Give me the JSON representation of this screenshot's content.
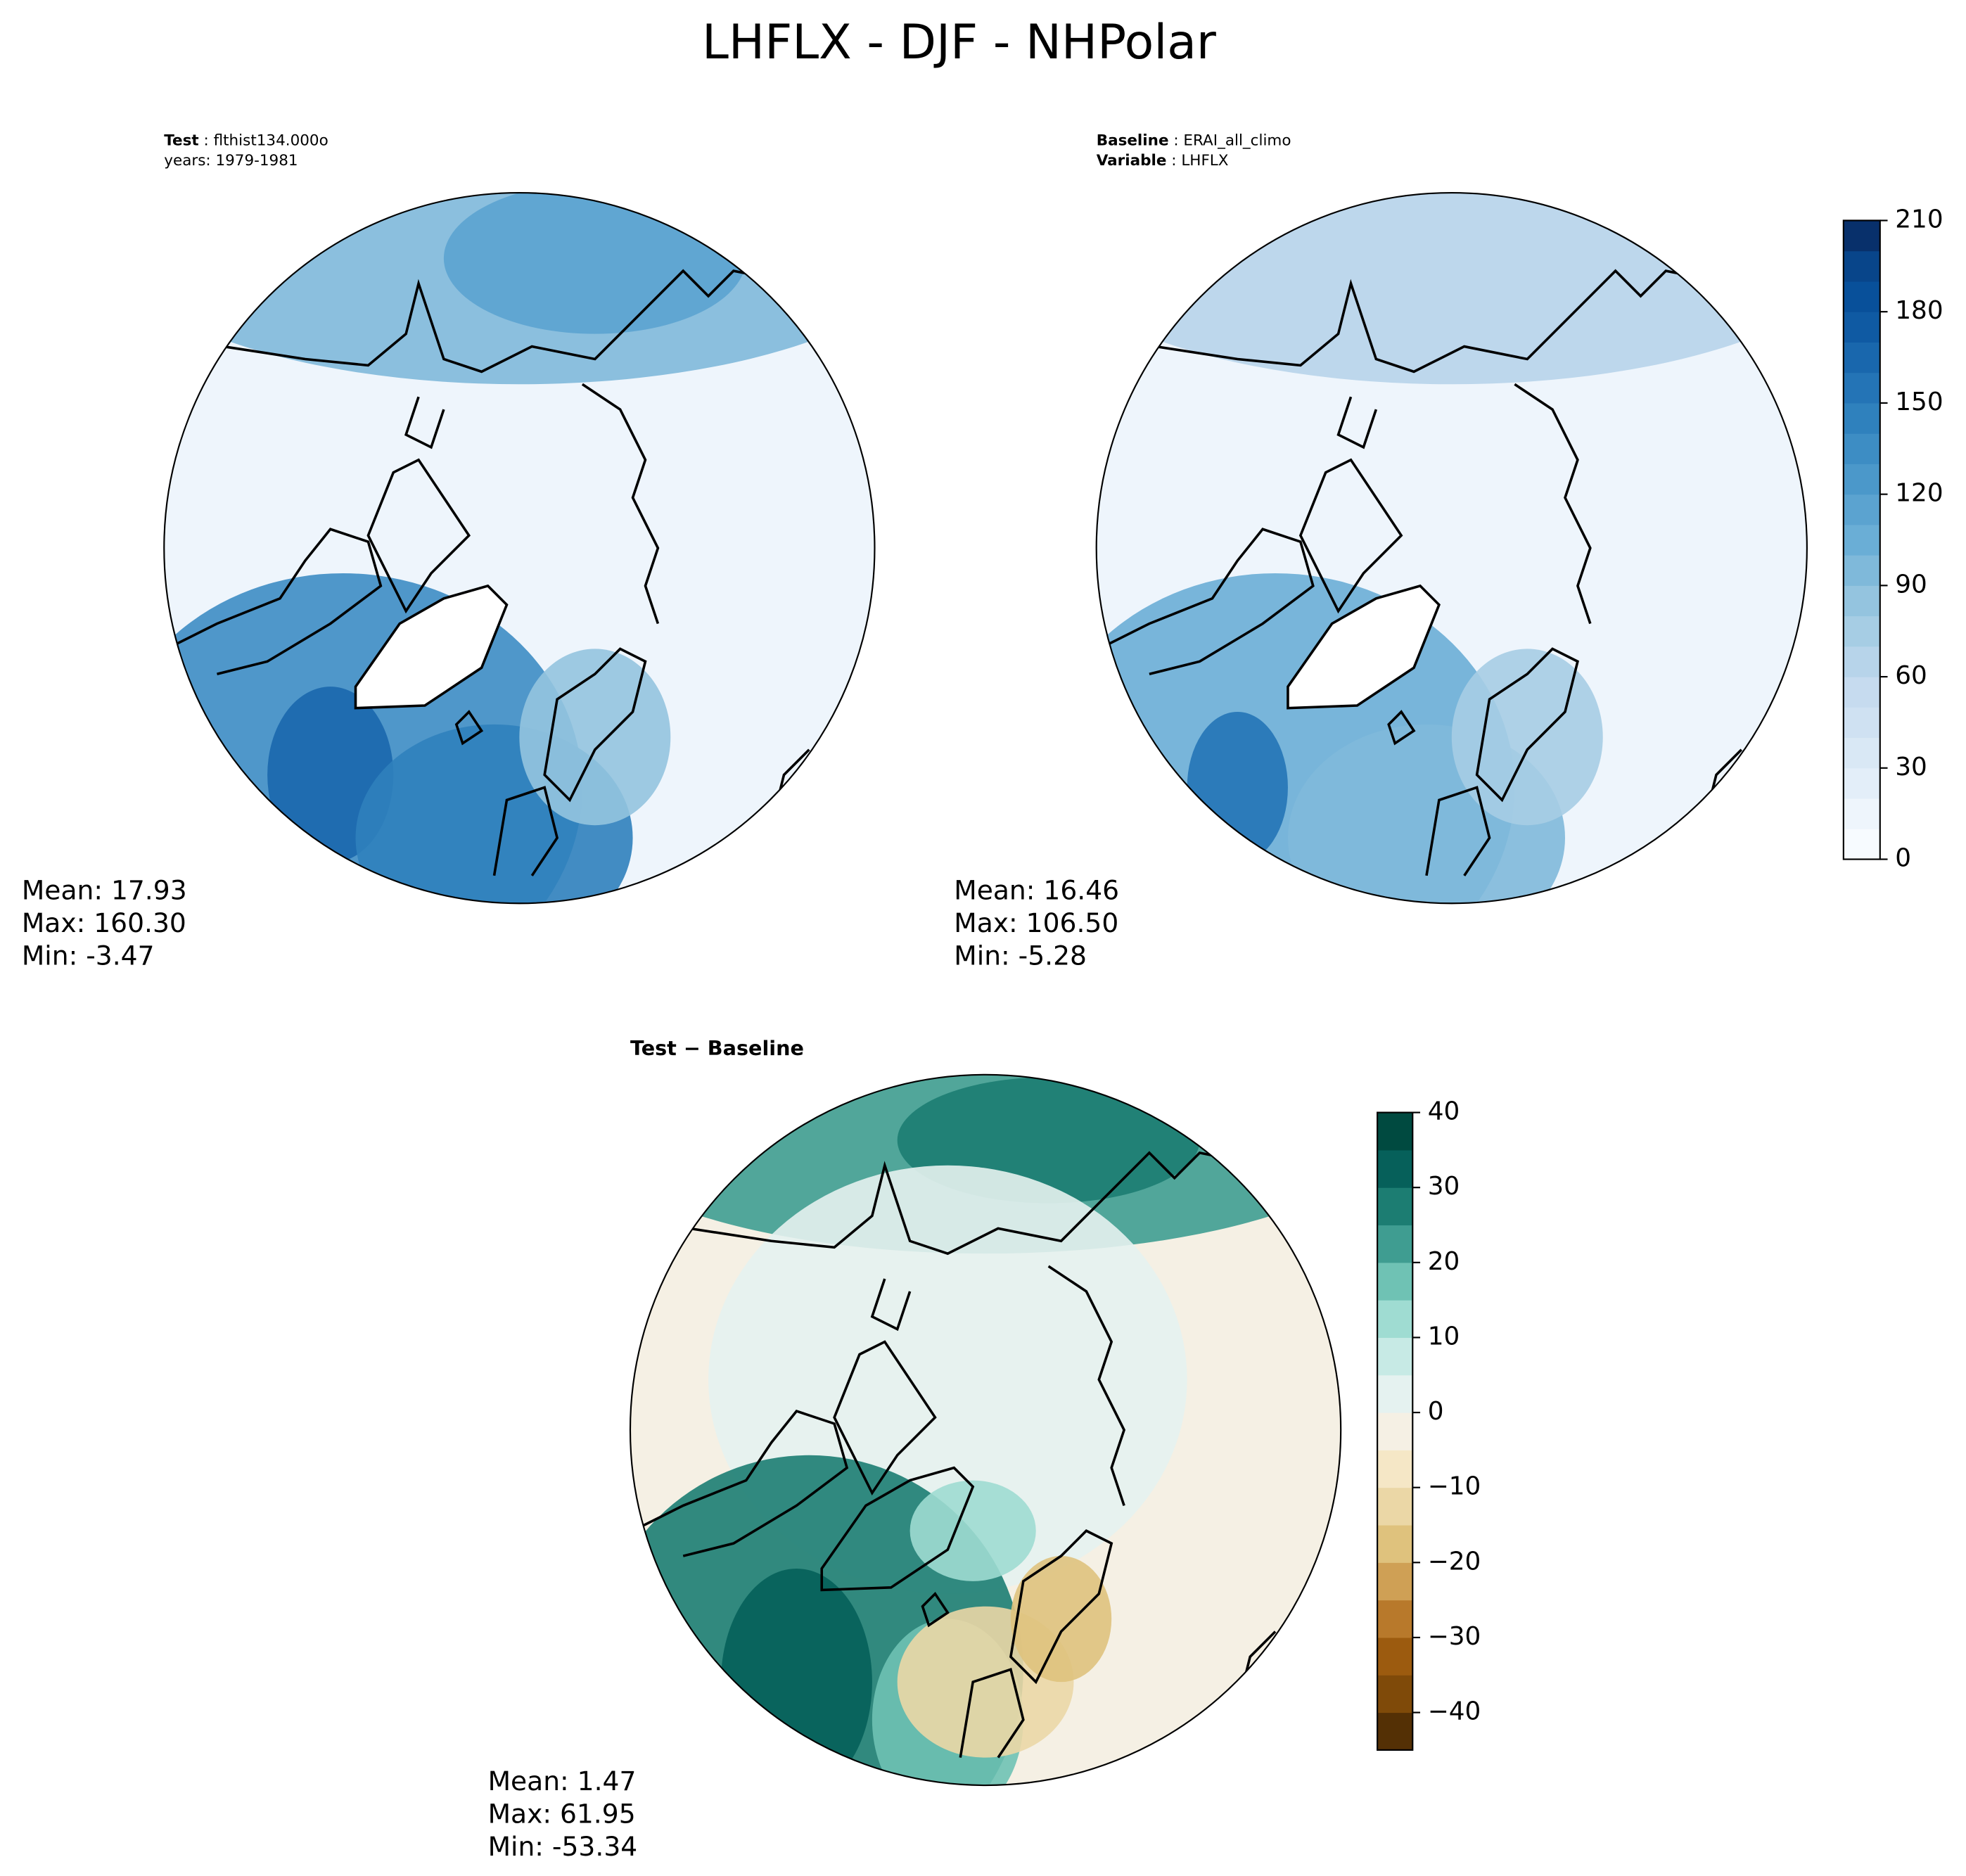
{
  "title": "LHFLX - DJF - NHPolar",
  "chart_data": [
    {
      "type": "map",
      "label_lines": [
        {
          "bold": "Test",
          "text": " : flthist134.000o"
        },
        {
          "text": "years: 1979-1981"
        }
      ],
      "stats": [
        "Mean: 17.93",
        "Max: 160.30",
        "Min: -3.47"
      ]
    },
    {
      "type": "map",
      "label_lines": [
        {
          "bold": "Baseline",
          "text": " : ERAI_all_climo"
        },
        {
          "bold": "Variable",
          "text": " : LHFLX"
        }
      ],
      "stats": [
        "Mean: 16.46",
        "Max: 106.50",
        "Min: -5.28"
      ],
      "colorbar": {
        "clim": [
          0,
          210
        ],
        "ticks": [
          0,
          30,
          60,
          90,
          120,
          150,
          180,
          210
        ],
        "colors": [
          "#f7fbff",
          "#eef5fc",
          "#e3eef9",
          "#d9e8f5",
          "#cfe1f2",
          "#c6dbef",
          "#b7d4ea",
          "#a6cde4",
          "#94c4df",
          "#7fb9da",
          "#6aaed6",
          "#5ba3d0",
          "#4b98ca",
          "#3d8dc4",
          "#2f81bd",
          "#2474b6",
          "#1967ad",
          "#0f5aa3",
          "#08509a",
          "#08458a",
          "#08306b"
        ]
      }
    },
    {
      "type": "map",
      "title": "Test − Baseline",
      "stats": [
        "Mean:  1.47",
        "Max: 61.95",
        "Min: -53.34"
      ],
      "colorbar": {
        "clim": [
          -45,
          40
        ],
        "ticks": [
          {
            "value": -40,
            "label": "−40"
          },
          {
            "value": -30,
            "label": "−30"
          },
          {
            "value": -20,
            "label": "−20"
          },
          {
            "value": -10,
            "label": "−10"
          },
          0,
          10,
          20,
          30,
          40
        ],
        "colors": [
          "#543005",
          "#7f4a09",
          "#9c5b0f",
          "#b8792b",
          "#cfa055",
          "#dfc27d",
          "#ebd7a6",
          "#f5e7c6",
          "#f5f0e4",
          "#e5f2f0",
          "#c7eae5",
          "#9fdcd2",
          "#6fc2b4",
          "#3f9d91",
          "#1c7d72",
          "#06605a",
          "#004a40"
        ]
      }
    }
  ]
}
